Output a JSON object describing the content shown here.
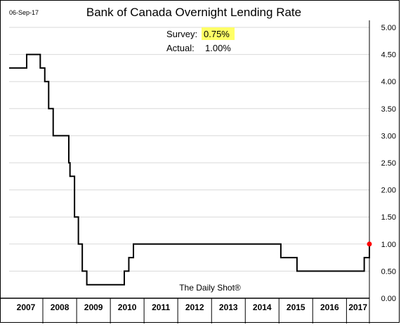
{
  "date_label": "06-Sep-17",
  "watermark": "The Daily Shot®",
  "annotations": {
    "survey_label": "Survey:",
    "survey_value": "0.75%",
    "actual_label": "Actual:",
    "actual_value": "1.00%"
  },
  "colors": {
    "line": "#000000",
    "grid": "#d9d9d9",
    "highlight": "#ffff66",
    "marker": "#ff0000"
  },
  "chart_data": {
    "type": "line",
    "title": "Bank of Canada Overnight Lending Rate",
    "xlabel": "",
    "ylabel": "",
    "y_axis_position": "right",
    "grid": "horizontal",
    "ylim": [
      0,
      5
    ],
    "yticks": [
      "0.00",
      "0.50",
      "1.00",
      "1.50",
      "2.00",
      "2.50",
      "3.00",
      "3.50",
      "4.00",
      "4.50",
      "5.00"
    ],
    "xlim": [
      "2007-01-01",
      "2017-09-06"
    ],
    "xtick_labels": [
      "2007",
      "2008",
      "2009",
      "2010",
      "2011",
      "2012",
      "2013",
      "2014",
      "2015",
      "2016",
      "2017"
    ],
    "series": [
      {
        "step": true,
        "x": [
          "2007-01-01",
          "2007-07-10",
          "2007-12-04",
          "2008-01-22",
          "2008-03-04",
          "2008-04-22",
          "2008-10-08",
          "2008-10-21",
          "2008-12-09",
          "2009-01-20",
          "2009-03-03",
          "2009-04-21",
          "2010-06-01",
          "2010-07-20",
          "2010-09-08",
          "2015-01-21",
          "2015-07-15",
          "2017-07-12",
          "2017-09-06"
        ],
        "values": [
          4.25,
          4.5,
          4.25,
          4.0,
          3.5,
          3.0,
          2.5,
          2.25,
          1.5,
          1.0,
          0.5,
          0.25,
          0.5,
          0.75,
          1.0,
          0.75,
          0.5,
          0.75,
          1.0
        ]
      }
    ],
    "highlight_point": {
      "x": "2017-09-06",
      "y": 1.0
    }
  }
}
